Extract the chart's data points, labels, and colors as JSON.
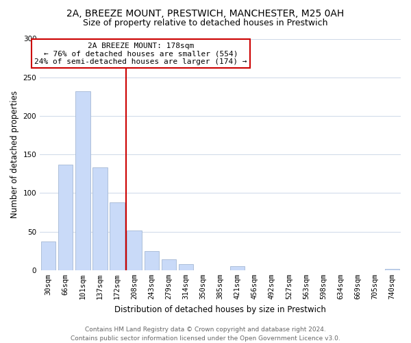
{
  "title": "2A, BREEZE MOUNT, PRESTWICH, MANCHESTER, M25 0AH",
  "subtitle": "Size of property relative to detached houses in Prestwich",
  "xlabel": "Distribution of detached houses by size in Prestwich",
  "ylabel": "Number of detached properties",
  "bar_labels": [
    "30sqm",
    "66sqm",
    "101sqm",
    "137sqm",
    "172sqm",
    "208sqm",
    "243sqm",
    "279sqm",
    "314sqm",
    "350sqm",
    "385sqm",
    "421sqm",
    "456sqm",
    "492sqm",
    "527sqm",
    "563sqm",
    "598sqm",
    "634sqm",
    "669sqm",
    "705sqm",
    "740sqm"
  ],
  "bar_values": [
    37,
    137,
    232,
    133,
    88,
    51,
    25,
    14,
    8,
    0,
    0,
    5,
    0,
    0,
    0,
    0,
    0,
    0,
    0,
    0,
    2
  ],
  "bar_color": "#c9daf8",
  "bar_edge_color": "#a4b8d4",
  "property_line_idx": 4,
  "property_line_color": "#cc0000",
  "annotation_line1": "2A BREEZE MOUNT: 178sqm",
  "annotation_line2": "← 76% of detached houses are smaller (554)",
  "annotation_line3": "24% of semi-detached houses are larger (174) →",
  "annotation_box_color": "#ffffff",
  "annotation_box_edge_color": "#cc0000",
  "ylim": [
    0,
    300
  ],
  "yticks": [
    0,
    50,
    100,
    150,
    200,
    250,
    300
  ],
  "footer_line1": "Contains HM Land Registry data © Crown copyright and database right 2024.",
  "footer_line2": "Contains public sector information licensed under the Open Government Licence v3.0.",
  "bg_color": "#ffffff",
  "grid_color": "#cdd8e8",
  "title_fontsize": 10,
  "subtitle_fontsize": 9,
  "axis_label_fontsize": 8.5,
  "tick_fontsize": 7.5,
  "annotation_fontsize": 8,
  "footer_fontsize": 6.5
}
